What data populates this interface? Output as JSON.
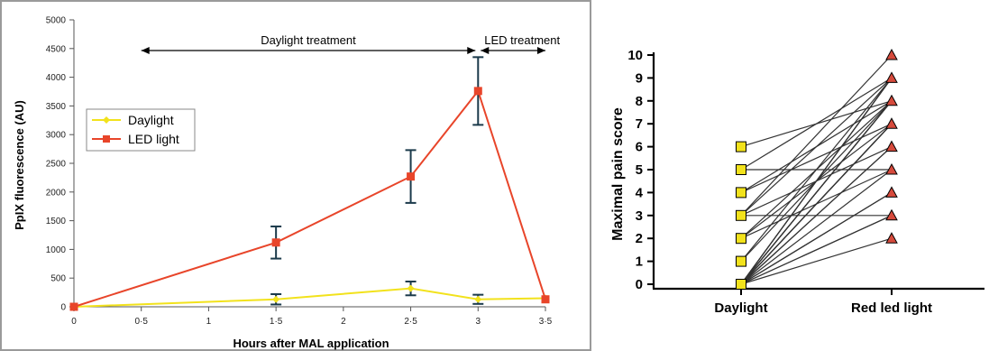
{
  "chart_data": [
    {
      "type": "line",
      "xlabel": "Hours after MAL application",
      "ylabel": "PpIX fluorescence (AU)",
      "xlim": [
        0,
        3.5
      ],
      "ylim": [
        0,
        5000
      ],
      "x_ticks": [
        "0",
        "0·5",
        "1",
        "1·5",
        "2",
        "2·5",
        "3",
        "3·5"
      ],
      "y_ticks": [
        "0",
        "500",
        "1000",
        "1500",
        "2000",
        "2500",
        "3000",
        "3500",
        "4000",
        "4500",
        "5000"
      ],
      "grid": false,
      "legend_position": "middle-left",
      "series": [
        {
          "name": "Daylight",
          "color": "#f2e21c",
          "marker": "diamond",
          "x": [
            0,
            1.5,
            2.5,
            3,
            3.5
          ],
          "y": [
            0,
            130,
            320,
            130,
            150
          ],
          "error": [
            0,
            90,
            120,
            80,
            0
          ]
        },
        {
          "name": "LED light",
          "color": "#e8452a",
          "marker": "square",
          "x": [
            0,
            1.5,
            2.5,
            3,
            3.5
          ],
          "y": [
            0,
            1120,
            2270,
            3760,
            130
          ],
          "error": [
            0,
            280,
            460,
            590,
            0
          ]
        }
      ],
      "annotations": [
        {
          "text": "Daylight treatment",
          "x_from": 0.5,
          "x_to": 3
        },
        {
          "text": "LED treatment",
          "x_from": 3,
          "x_to": 3.5
        }
      ]
    },
    {
      "type": "scatter",
      "ylabel": "Maximal pain score",
      "categories": [
        "Daylight",
        "Red led light"
      ],
      "ylim": [
        0,
        10
      ],
      "y_ticks": [
        "0",
        "1",
        "2",
        "3",
        "4",
        "5",
        "6",
        "7",
        "8",
        "9",
        "10"
      ],
      "marker_colors": {
        "daylight": "#f2e21c",
        "red_led": "#d64a3c"
      },
      "pairs": [
        [
          6,
          8
        ],
        [
          5,
          9
        ],
        [
          5,
          5
        ],
        [
          4,
          7
        ],
        [
          4,
          8
        ],
        [
          3,
          9
        ],
        [
          3,
          10
        ],
        [
          3,
          6
        ],
        [
          3,
          3
        ],
        [
          2,
          8
        ],
        [
          2,
          7
        ],
        [
          2,
          5
        ],
        [
          1,
          8
        ],
        [
          1,
          9
        ],
        [
          0,
          8
        ],
        [
          0,
          7
        ],
        [
          0,
          6
        ],
        [
          0,
          9
        ],
        [
          0,
          4
        ],
        [
          0,
          3
        ],
        [
          0,
          2
        ],
        [
          0,
          5
        ],
        [
          0,
          7
        ],
        [
          0,
          8
        ],
        [
          0,
          9
        ],
        [
          0,
          7
        ],
        [
          0,
          8
        ],
        [
          0,
          3
        ],
        [
          0,
          4
        ],
        [
          0,
          6
        ],
        [
          0,
          9
        ],
        [
          0,
          8
        ],
        [
          0,
          7
        ]
      ]
    }
  ]
}
